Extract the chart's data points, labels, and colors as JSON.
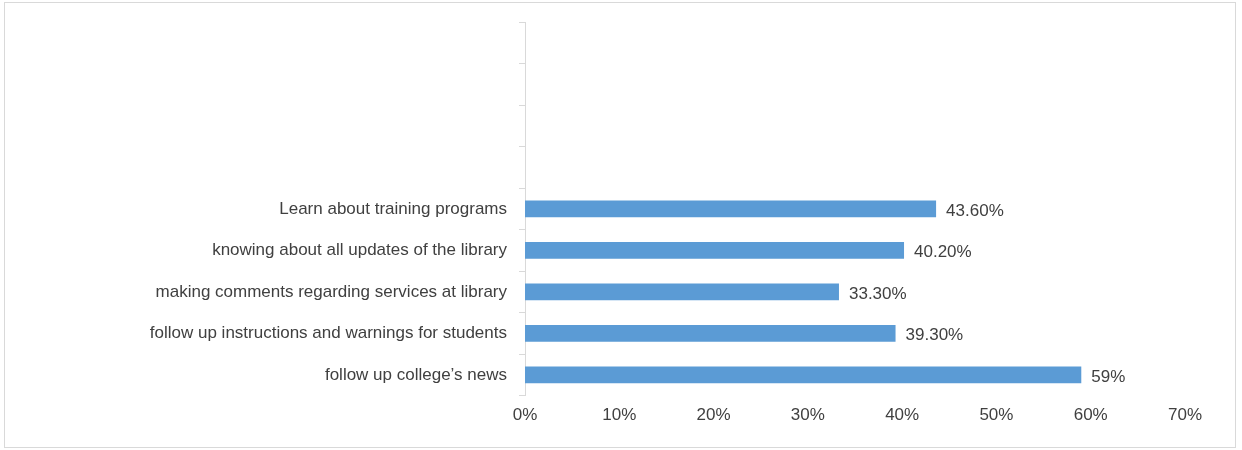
{
  "chart_data": {
    "type": "bar",
    "orientation": "horizontal",
    "categories": [
      null,
      null,
      null,
      null,
      "Learn about training programs",
      "knowing about all updates of the library",
      "making comments regarding services at library",
      "follow up instructions and warnings for students",
      "follow up college’s news"
    ],
    "values": [
      null,
      null,
      null,
      null,
      43.6,
      40.2,
      33.3,
      39.3,
      59
    ],
    "value_labels": [
      null,
      null,
      null,
      null,
      "43.60%",
      "40.20%",
      "33.30%",
      "39.30%",
      "59%"
    ],
    "color": "#5b9bd5",
    "xlim": [
      0,
      70
    ],
    "xticks": [
      {
        "value": 0,
        "label": "0%"
      },
      {
        "value": 10,
        "label": "10%"
      },
      {
        "value": 20,
        "label": "20%"
      },
      {
        "value": 30,
        "label": "30%"
      },
      {
        "value": 40,
        "label": "40%"
      },
      {
        "value": 50,
        "label": "50%"
      },
      {
        "value": 60,
        "label": "60%"
      },
      {
        "value": 70,
        "label": "70%"
      }
    ],
    "grid": false
  }
}
